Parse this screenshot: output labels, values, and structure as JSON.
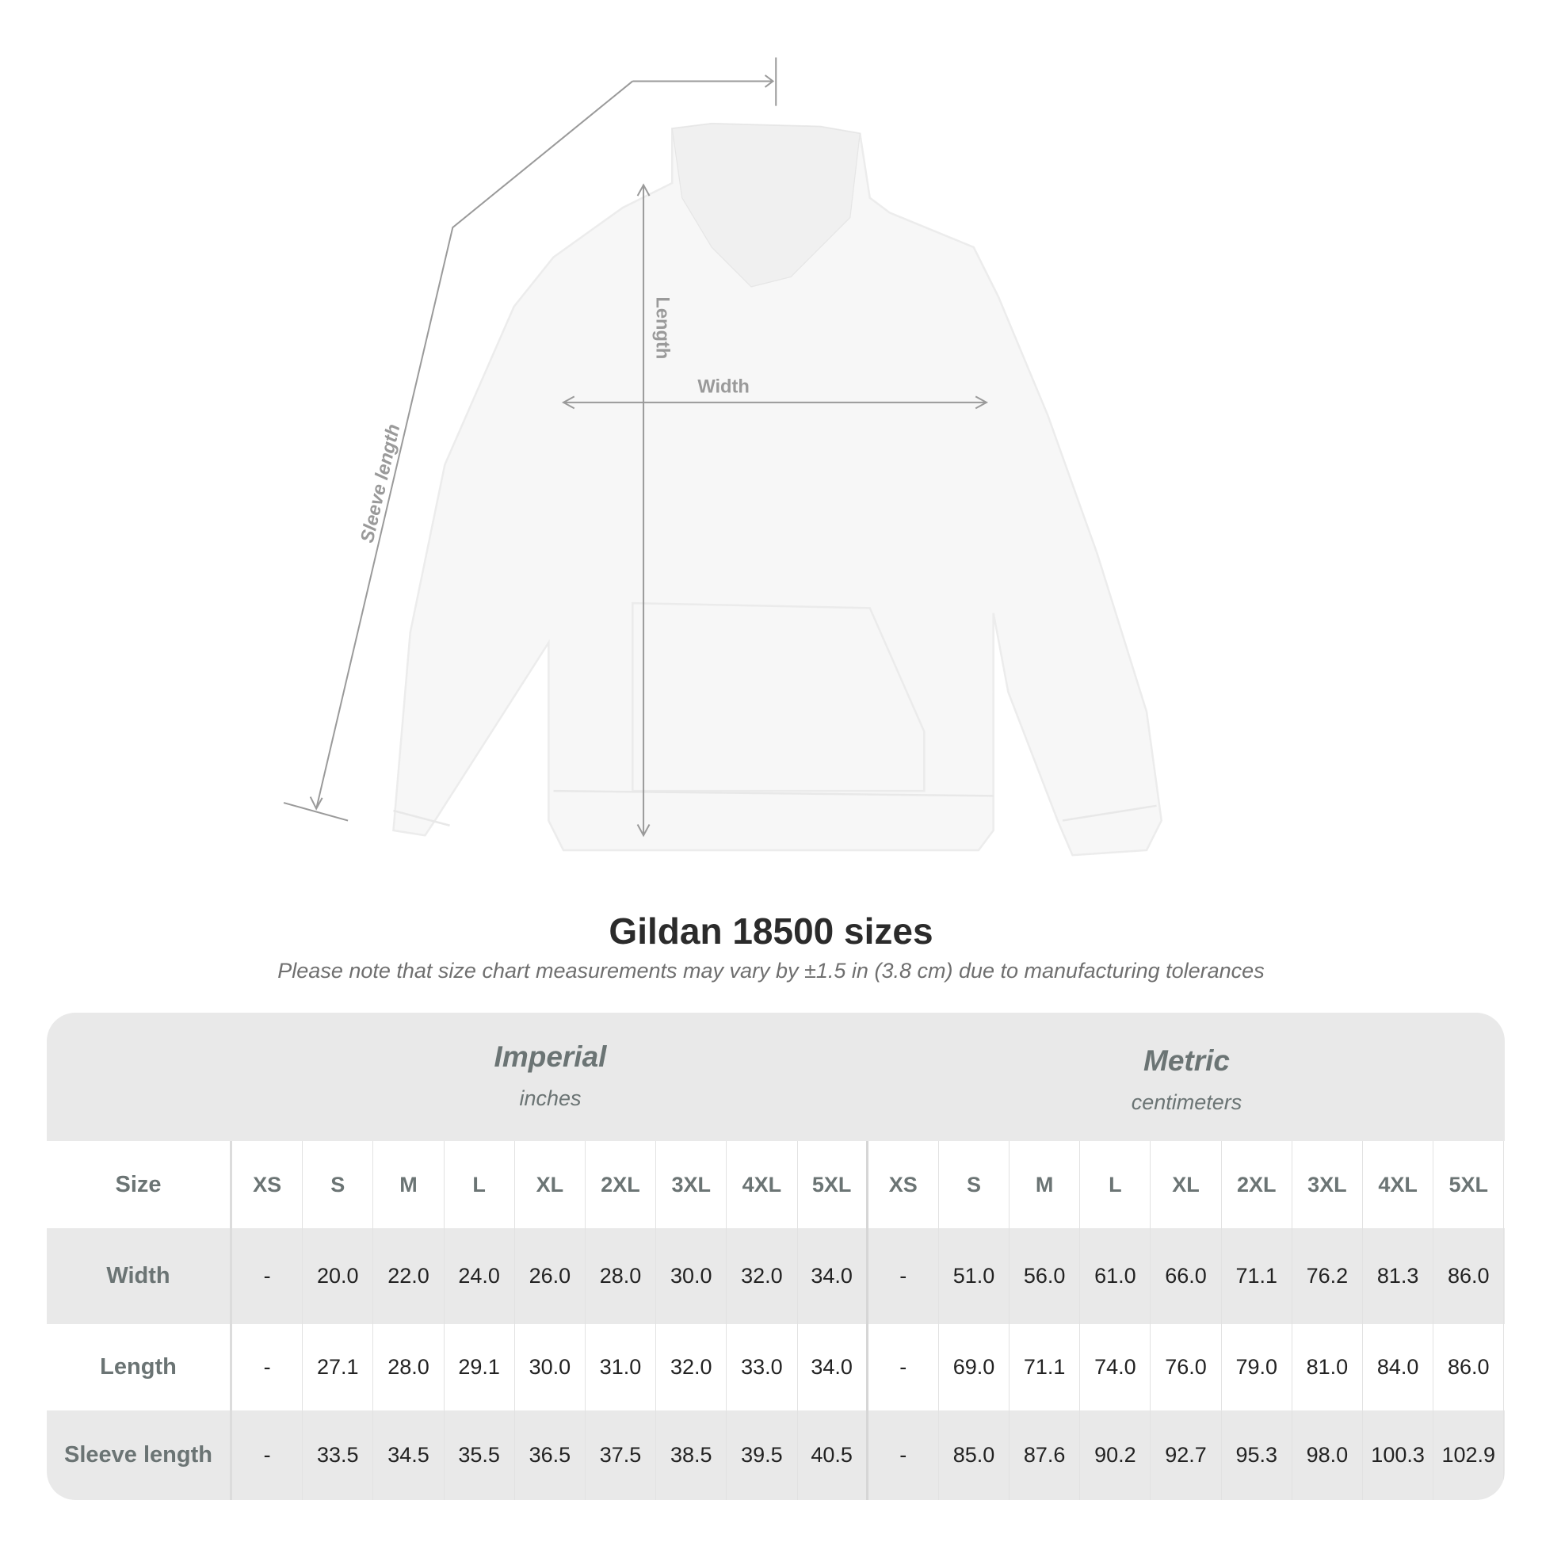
{
  "diagram": {
    "labels": {
      "length": "Length",
      "width": "Width",
      "sleeve": "Sleeve length"
    }
  },
  "title": "Gildan 18500 sizes",
  "subtitle": "Please note that size chart measurements may vary by ±1.5 in (3.8 cm) due to manufacturing tolerances",
  "groups": {
    "imperial": {
      "name": "Imperial",
      "unit": "inches"
    },
    "metric": {
      "name": "Metric",
      "unit": "centimeters"
    }
  },
  "sizes": [
    "XS",
    "S",
    "M",
    "L",
    "XL",
    "2XL",
    "3XL",
    "4XL",
    "5XL"
  ],
  "rows": [
    {
      "label": "Size"
    },
    {
      "label": "Width",
      "imperial": [
        "-",
        "20.0",
        "22.0",
        "24.0",
        "26.0",
        "28.0",
        "30.0",
        "32.0",
        "34.0"
      ],
      "metric": [
        "-",
        "51.0",
        "56.0",
        "61.0",
        "66.0",
        "71.1",
        "76.2",
        "81.3",
        "86.0"
      ]
    },
    {
      "label": "Length",
      "imperial": [
        "-",
        "27.1",
        "28.0",
        "29.1",
        "30.0",
        "31.0",
        "32.0",
        "33.0",
        "34.0"
      ],
      "metric": [
        "-",
        "69.0",
        "71.1",
        "74.0",
        "76.0",
        "79.0",
        "81.0",
        "84.0",
        "86.0"
      ]
    },
    {
      "label": "Sleeve length",
      "imperial": [
        "-",
        "33.5",
        "34.5",
        "35.5",
        "36.5",
        "37.5",
        "38.5",
        "39.5",
        "40.5"
      ],
      "metric": [
        "-",
        "85.0",
        "87.6",
        "90.2",
        "92.7",
        "95.3",
        "98.0",
        "100.3",
        "102.9"
      ]
    }
  ],
  "colors": {
    "band": "#e9e9e9",
    "label": "#6b7474",
    "dimension_line": "#9a9a9a"
  }
}
